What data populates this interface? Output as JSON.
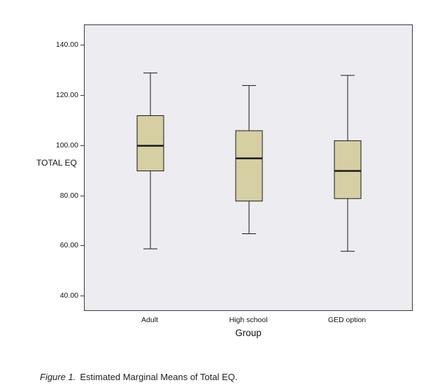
{
  "figure": {
    "y_axis_title": "TOTAL EQ",
    "x_axis_title": "Group",
    "caption_label": "Figure 1.",
    "caption_text": "Estimated Marginal Means of Total EQ."
  },
  "chart_data": {
    "type": "boxplot",
    "title": "",
    "xlabel": "Group",
    "ylabel": "TOTAL EQ",
    "ylim": [
      34,
      148
    ],
    "grid": false,
    "legend": false,
    "yticks": [
      {
        "value": 40,
        "label": "40.00"
      },
      {
        "value": 60,
        "label": "60.00"
      },
      {
        "value": 80,
        "label": "80.00"
      },
      {
        "value": 100,
        "label": "100.00"
      },
      {
        "value": 120,
        "label": "120.00"
      },
      {
        "value": 140,
        "label": "140.00"
      }
    ],
    "categories": [
      "Adult",
      "High school",
      "GED option"
    ],
    "boxes": [
      {
        "category": "Adult",
        "whisker_low": 59,
        "q1": 90,
        "median": 100,
        "q3": 112,
        "whisker_high": 129
      },
      {
        "category": "High school",
        "whisker_low": 65,
        "q1": 78,
        "median": 95,
        "q3": 106,
        "whisker_high": 124
      },
      {
        "category": "GED option",
        "whisker_low": 58,
        "q1": 79,
        "median": 90,
        "q3": 102,
        "whisker_high": 128
      }
    ],
    "colors": {
      "box_fill": "#d5cfa3",
      "box_border": "#1a1a1a",
      "plot_bg": "#ececf1"
    }
  }
}
